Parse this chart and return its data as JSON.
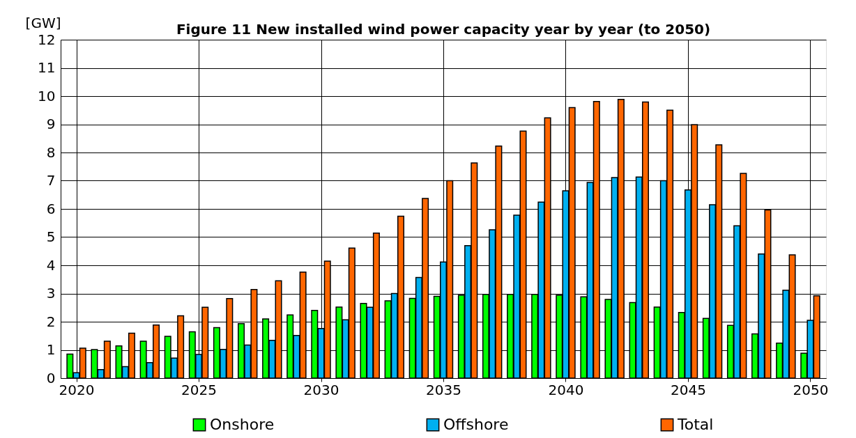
{
  "chart_data": {
    "type": "bar",
    "title": "Figure 11 New installed wind power capacity year by year (to 2050)",
    "ylabel": "[GW]",
    "x": [
      2020,
      2021,
      2022,
      2023,
      2024,
      2025,
      2026,
      2027,
      2028,
      2029,
      2030,
      2031,
      2032,
      2033,
      2034,
      2035,
      2036,
      2037,
      2038,
      2039,
      2040,
      2041,
      2042,
      2043,
      2044,
      2045,
      2046,
      2047,
      2048,
      2049,
      2050
    ],
    "series": [
      {
        "name": "Onshore",
        "color": "#00ff00",
        "values": [
          0.85,
          1.01,
          1.14,
          1.31,
          1.48,
          1.64,
          1.79,
          1.93,
          2.1,
          2.24,
          2.4,
          2.52,
          2.65,
          2.74,
          2.83,
          2.9,
          2.94,
          2.97,
          2.97,
          2.97,
          2.94,
          2.88,
          2.79,
          2.68,
          2.52,
          2.33,
          2.12,
          1.87,
          1.57,
          1.24,
          0.88
        ]
      },
      {
        "name": "Offshore",
        "color": "#00b0f0",
        "values": [
          0.19,
          0.3,
          0.41,
          0.55,
          0.71,
          0.84,
          1.02,
          1.17,
          1.34,
          1.51,
          1.76,
          2.07,
          2.51,
          3.0,
          3.57,
          4.12,
          4.7,
          5.26,
          5.78,
          6.24,
          6.64,
          6.94,
          7.11,
          7.13,
          7.0,
          6.67,
          6.15,
          5.4,
          4.4,
          3.12,
          2.05
        ]
      },
      {
        "name": "Total",
        "color": "#ff6600",
        "values": [
          1.06,
          1.31,
          1.59,
          1.88,
          2.21,
          2.51,
          2.82,
          3.14,
          3.45,
          3.76,
          4.15,
          4.61,
          5.14,
          5.74,
          6.37,
          7.0,
          7.63,
          8.23,
          8.76,
          9.23,
          9.59,
          9.81,
          9.88,
          9.79,
          9.5,
          8.99,
          8.27,
          7.26,
          5.96,
          4.37,
          2.92
        ]
      }
    ],
    "xlim": [
      2019.5,
      2050.5
    ],
    "xticks": [
      2020,
      2025,
      2030,
      2035,
      2040,
      2045,
      2050
    ],
    "ylim": [
      0,
      12
    ],
    "yticks": [
      0,
      1,
      2,
      3,
      4,
      5,
      6,
      7,
      8,
      9,
      10,
      11,
      12
    ],
    "grid": true,
    "legend": "bottom"
  }
}
